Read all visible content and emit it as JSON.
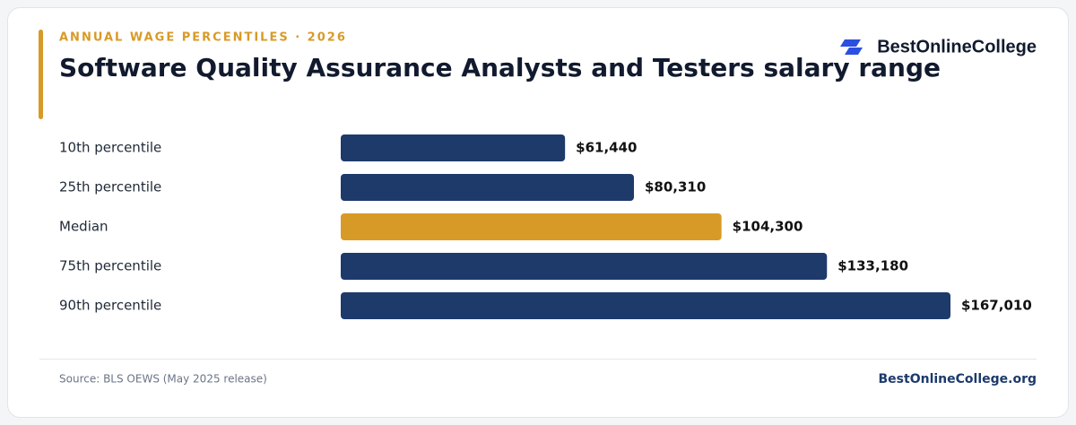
{
  "chart_data": {
    "type": "bar",
    "orientation": "horizontal",
    "eyebrow": "ANNUAL WAGE PERCENTILES · 2026",
    "title": "Software Quality Assurance Analysts and Testers salary range",
    "brand": "BestOnlineCollege",
    "categories": [
      "10th percentile",
      "25th percentile",
      "Median",
      "75th percentile",
      "90th percentile"
    ],
    "values": [
      61440,
      80310,
      104300,
      133180,
      167010
    ],
    "value_labels": [
      "$61,440",
      "$80,310",
      "$104,300",
      "$133,180",
      "$167,010"
    ],
    "colors": [
      "#1d3a6b",
      "#1d3a6b",
      "#d89a26",
      "#1d3a6b",
      "#1d3a6b"
    ],
    "source": "Source: BLS OEWS (May 2025 release)",
    "site": "BestOnlineCollege.org"
  }
}
